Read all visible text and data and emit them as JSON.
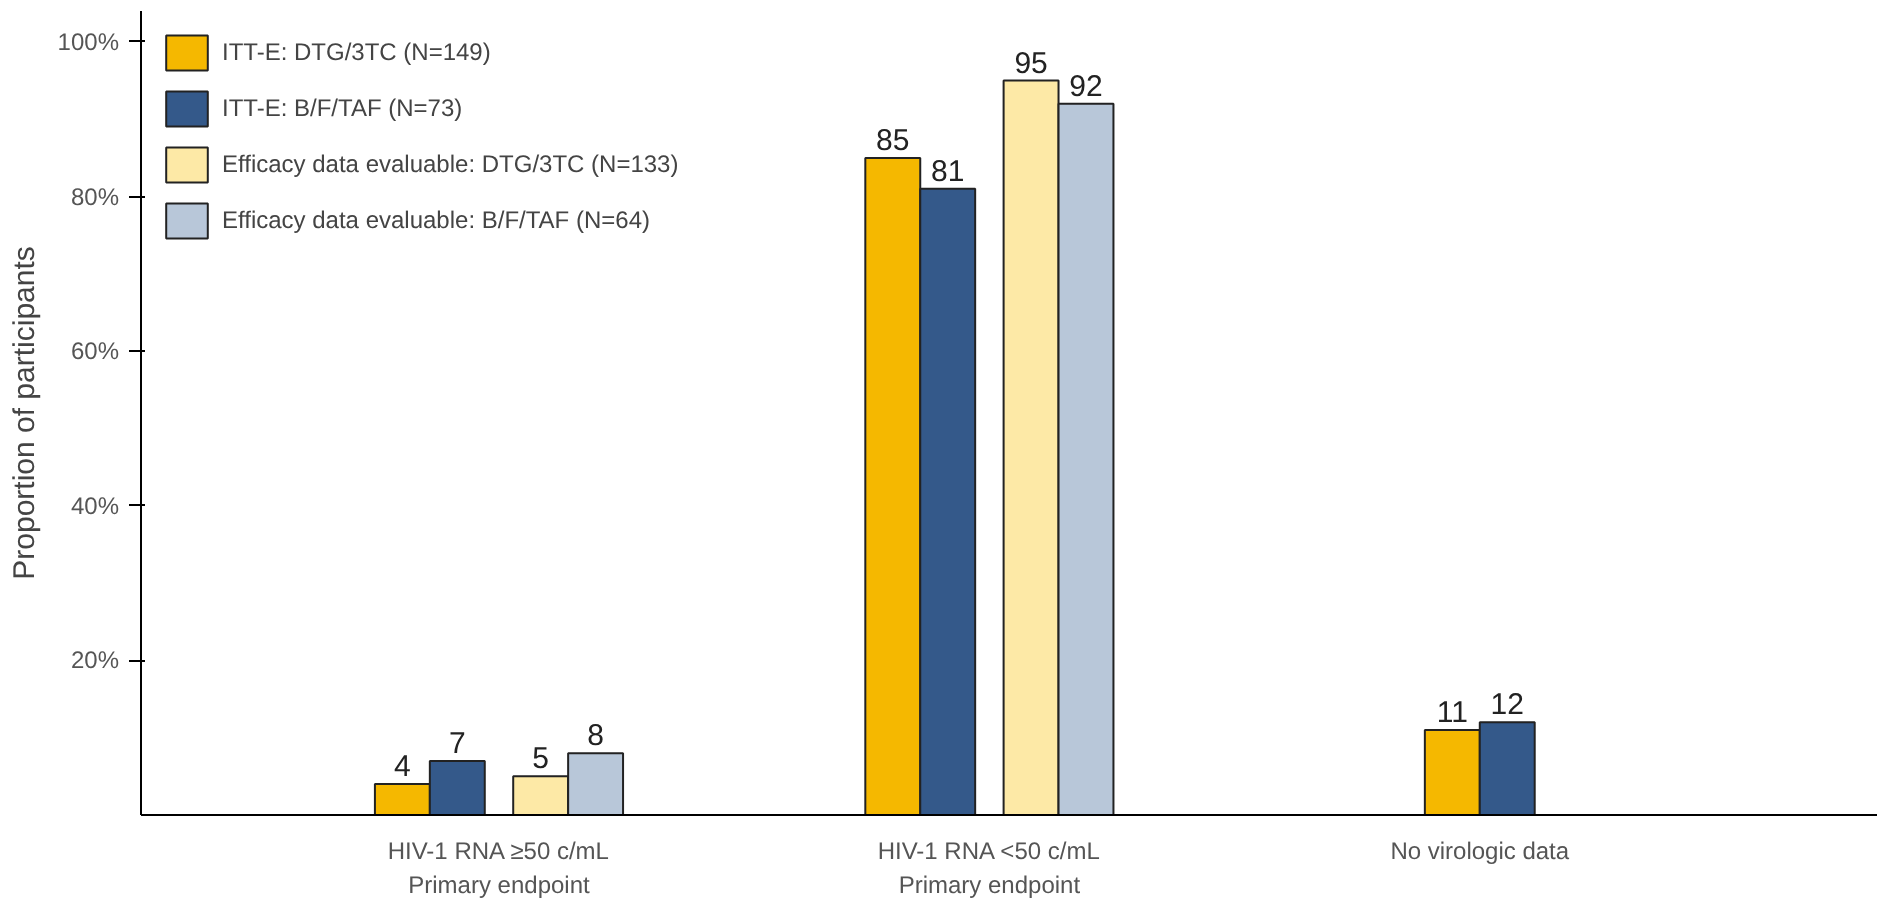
{
  "chart_data": {
    "type": "bar",
    "ylabel": "Proportion of participants",
    "categories": [
      "HIV-1 RNA ≥50 c/mL\nPrimary endpoint",
      "HIV-1 RNA <50 c/mL\nPrimary endpoint",
      "No virologic data"
    ],
    "series": [
      {
        "name": "ITT-E: DTG/3TC (N=149)",
        "color": "#f5b800",
        "values": [
          4,
          85,
          11
        ]
      },
      {
        "name": "ITT-E: B/F/TAF (N=73)",
        "color": "#34598a",
        "values": [
          7,
          81,
          12
        ]
      },
      {
        "name": "Efficacy data evaluable: DTG/3TC (N=133)",
        "color": "#fde9a6",
        "values": [
          5,
          95,
          null
        ]
      },
      {
        "name": "Efficacy data evaluable: B/F/TAF (N=64)",
        "color": "#b8c7d9",
        "values": [
          8,
          92,
          null
        ]
      }
    ],
    "ylim": [
      0,
      104
    ],
    "yticks": [
      {
        "value": 20,
        "label": "20%"
      },
      {
        "value": 40,
        "label": "40%"
      },
      {
        "value": 60,
        "label": "60%"
      },
      {
        "value": 80,
        "label": "80%"
      },
      {
        "value": 100,
        "label": "100%"
      }
    ],
    "data_labels": true,
    "grid": false,
    "legend": "top left"
  }
}
